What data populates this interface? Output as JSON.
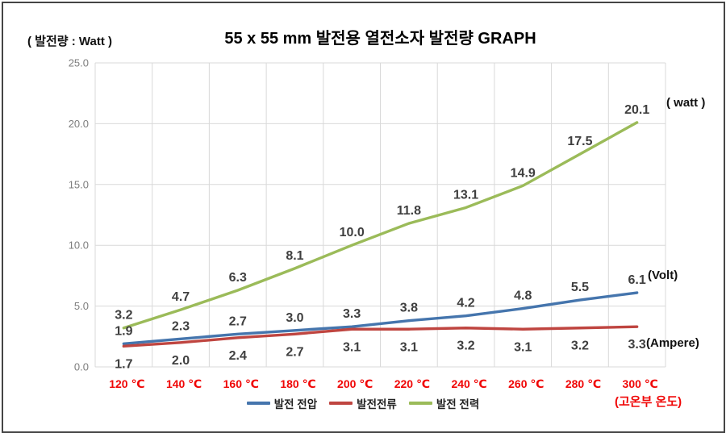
{
  "header": {
    "unit_label": "( 발전량 : Watt )",
    "title": "55 x 55 mm 발전용 열전소자 발전량 GRAPH"
  },
  "annotations": {
    "watt_unit": "( watt )",
    "volt_unit": "(Volt)",
    "ampere_unit": "(Ampere)",
    "x_axis_note": "(고온부 온도)"
  },
  "colors": {
    "grid": "#d9d9d9",
    "y_tick_label": "#7d7d7d",
    "x_tick_label": "#f00606",
    "data_label": "#3f3f3f",
    "voltage_line": "#4575ad",
    "current_line": "#bf4540",
    "power_line": "#9bbb59",
    "frame_border": "#454545"
  },
  "chart_data": {
    "type": "line",
    "title": "55 x 55 mm 발전용 열전소자 발전량 GRAPH",
    "xlabel": "(고온부 온도)",
    "ylabel": "( 발전량 : Watt )",
    "categories": [
      "120 ℃",
      "140 ℃",
      "160 ℃",
      "180 ℃",
      "200 ℃",
      "220 ℃",
      "240 ℃",
      "260 ℃",
      "280 ℃",
      "300 ℃"
    ],
    "ylim": [
      0,
      25
    ],
    "y_ticks": [
      0,
      5,
      10,
      15,
      20,
      25
    ],
    "y_tick_labels": [
      "0.0",
      "5.0",
      "10.0",
      "15.0",
      "20.0",
      "25.0"
    ],
    "grid": true,
    "legend_position": "bottom",
    "series": [
      {
        "name": "발전 전압",
        "unit": "Volt",
        "color": "#4575ad",
        "label_position": "above",
        "values": [
          1.9,
          2.3,
          2.7,
          3.0,
          3.3,
          3.8,
          4.2,
          4.8,
          5.5,
          6.1
        ]
      },
      {
        "name": "발전전류",
        "unit": "Ampere",
        "color": "#bf4540",
        "label_position": "below",
        "values": [
          1.7,
          2.0,
          2.4,
          2.7,
          3.1,
          3.1,
          3.2,
          3.1,
          3.2,
          3.3
        ]
      },
      {
        "name": "발전 전력",
        "unit": "watt",
        "color": "#9bbb59",
        "label_position": "above",
        "values": [
          3.2,
          4.7,
          6.3,
          8.1,
          10.0,
          11.8,
          13.1,
          14.9,
          17.5,
          20.1
        ]
      }
    ]
  }
}
